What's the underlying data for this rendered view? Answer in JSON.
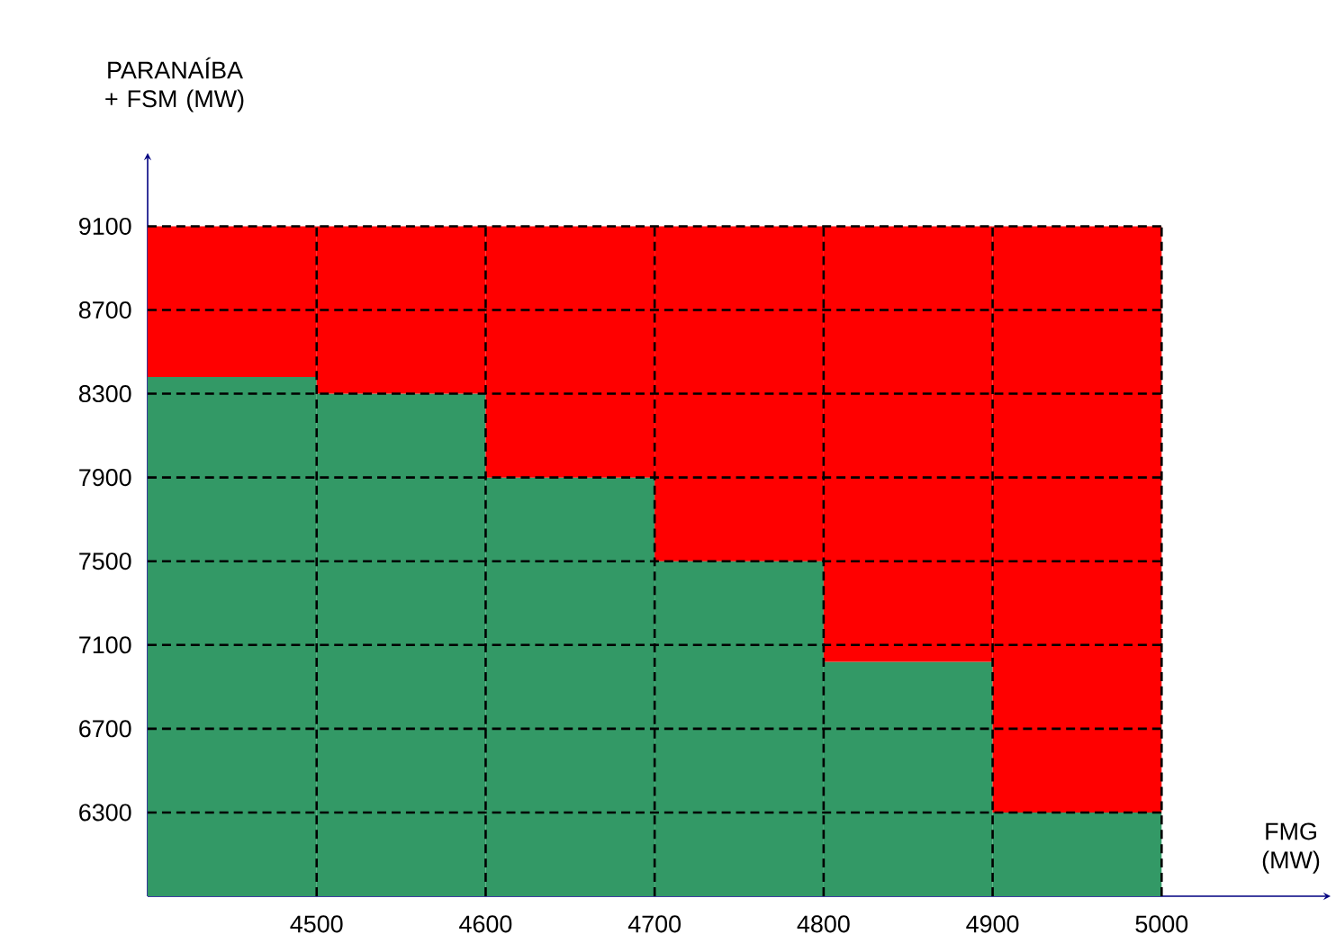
{
  "chart_data": {
    "type": "bar",
    "xlabel": "FMG (MW)",
    "ylabel": "PARANAÍBA + FSM (MW)",
    "x": [
      4450,
      4550,
      4650,
      4750,
      4850,
      4950
    ],
    "series": [
      {
        "color": "#339966",
        "base": [
          5900,
          5900,
          5900,
          5900,
          5900,
          5900
        ],
        "values": [
          2480,
          2400,
          2000,
          1600,
          1120,
          400
        ]
      },
      {
        "color": "#ff0000",
        "base": [
          8380,
          8300,
          7900,
          7500,
          7020,
          6300
        ],
        "values": [
          720,
          800,
          1200,
          1600,
          2080,
          2800
        ]
      }
    ],
    "xlim": [
      4400,
      5100
    ],
    "ylim": [
      5900,
      9450
    ],
    "xticks": [
      4500,
      4600,
      4700,
      4800,
      4900,
      5000
    ],
    "yticks": [
      6300,
      6700,
      7100,
      7500,
      7900,
      8300,
      8700,
      9100
    ],
    "grid": true
  }
}
